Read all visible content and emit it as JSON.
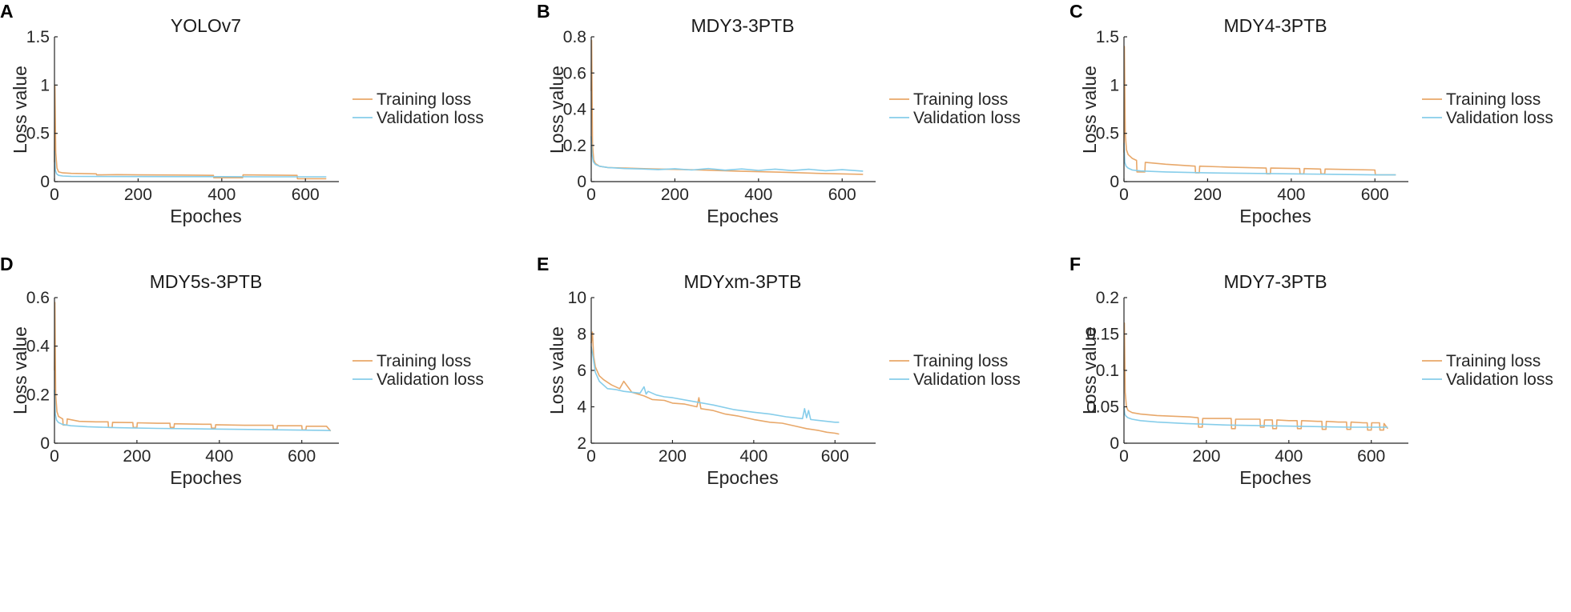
{
  "colors": {
    "training": "#E8A86A",
    "validation": "#86CDEA"
  },
  "legend": {
    "training_label": "Training loss",
    "validation_label": "Validation loss"
  },
  "chart_data": [
    {
      "panel_label": "A",
      "type": "line",
      "title": "YOLOv7",
      "xlabel": "Epoches",
      "ylabel": "Loss value",
      "xlim": [
        0,
        680
      ],
      "ylim": [
        0,
        1.5
      ],
      "xticks": [
        0,
        200,
        400,
        600
      ],
      "yticks": [
        0,
        0.5,
        1,
        1.5
      ],
      "ytick_labels": [
        "0",
        "0.5",
        "1",
        "1.5"
      ],
      "series": [
        {
          "name": "Training loss",
          "x": [
            0,
            1,
            3,
            6,
            10,
            20,
            40,
            100,
            101,
            150,
            200,
            300,
            380,
            381,
            450,
            451,
            500,
            580,
            581,
            620,
            650
          ],
          "y": [
            0.2,
            1.0,
            0.3,
            0.14,
            0.1,
            0.09,
            0.085,
            0.08,
            0.07,
            0.072,
            0.07,
            0.068,
            0.065,
            0.04,
            0.04,
            0.07,
            0.068,
            0.065,
            0.03,
            0.03,
            0.03
          ]
        },
        {
          "name": "Validation loss",
          "x": [
            0,
            2,
            5,
            10,
            20,
            40,
            100,
            200,
            300,
            400,
            500,
            600,
            650
          ],
          "y": [
            0.32,
            0.12,
            0.08,
            0.065,
            0.058,
            0.055,
            0.053,
            0.052,
            0.051,
            0.051,
            0.05,
            0.05,
            0.05
          ]
        }
      ]
    },
    {
      "panel_label": "B",
      "type": "line",
      "title": "MDY3-3PTB",
      "xlabel": "Epoches",
      "ylabel": "Loss value",
      "xlim": [
        0,
        680
      ],
      "ylim": [
        0,
        0.8
      ],
      "xticks": [
        0,
        200,
        400,
        600
      ],
      "yticks": [
        0,
        0.2,
        0.4,
        0.6,
        0.8
      ],
      "ytick_labels": [
        "0",
        "0.2",
        "0.4",
        "0.6",
        "0.8"
      ],
      "series": [
        {
          "name": "Training loss",
          "x": [
            0,
            1,
            3,
            6,
            10,
            20,
            40,
            80,
            150,
            250,
            350,
            450,
            550,
            650
          ],
          "y": [
            0.5,
            0.78,
            0.2,
            0.12,
            0.1,
            0.085,
            0.078,
            0.075,
            0.07,
            0.065,
            0.058,
            0.052,
            0.045,
            0.04
          ]
        },
        {
          "name": "Validation loss",
          "x": [
            0,
            2,
            5,
            10,
            20,
            40,
            80,
            120,
            160,
            200,
            240,
            280,
            320,
            360,
            400,
            440,
            480,
            520,
            560,
            600,
            650
          ],
          "y": [
            0.25,
            0.15,
            0.11,
            0.095,
            0.085,
            0.078,
            0.072,
            0.07,
            0.066,
            0.071,
            0.064,
            0.072,
            0.063,
            0.07,
            0.062,
            0.069,
            0.061,
            0.068,
            0.06,
            0.066,
            0.058
          ]
        }
      ]
    },
    {
      "panel_label": "C",
      "type": "line",
      "title": "MDY4-3PTB",
      "xlabel": "Epoches",
      "ylabel": "Loss value",
      "xlim": [
        0,
        680
      ],
      "ylim": [
        0,
        1.5
      ],
      "xticks": [
        0,
        200,
        400,
        600
      ],
      "yticks": [
        0,
        0.5,
        1,
        1.5
      ],
      "ytick_labels": [
        "0",
        "0.5",
        "1",
        "1.5"
      ],
      "series": [
        {
          "name": "Training loss",
          "x": [
            0,
            1,
            3,
            6,
            10,
            20,
            30,
            31,
            50,
            51,
            100,
            170,
            171,
            180,
            181,
            250,
            340,
            341,
            350,
            351,
            420,
            421,
            430,
            431,
            470,
            471,
            480,
            481,
            600,
            601,
            650
          ],
          "y": [
            0.3,
            1.4,
            0.5,
            0.33,
            0.28,
            0.24,
            0.22,
            0.1,
            0.1,
            0.2,
            0.18,
            0.16,
            0.09,
            0.09,
            0.16,
            0.15,
            0.14,
            0.08,
            0.08,
            0.14,
            0.135,
            0.08,
            0.08,
            0.135,
            0.13,
            0.08,
            0.08,
            0.13,
            0.12,
            0.07,
            0.07
          ]
        },
        {
          "name": "Validation loss",
          "x": [
            0,
            2,
            5,
            10,
            20,
            40,
            100,
            200,
            300,
            400,
            500,
            600,
            650
          ],
          "y": [
            0.4,
            0.2,
            0.16,
            0.14,
            0.12,
            0.11,
            0.1,
            0.09,
            0.085,
            0.08,
            0.075,
            0.07,
            0.07
          ]
        }
      ]
    },
    {
      "panel_label": "D",
      "type": "line",
      "title": "MDY5s-3PTB",
      "xlabel": "Epoches",
      "ylabel": "Loss value",
      "xlim": [
        0,
        690
      ],
      "ylim": [
        0,
        0.6
      ],
      "xticks": [
        0,
        200,
        400,
        600
      ],
      "yticks": [
        0,
        0.2,
        0.4,
        0.6
      ],
      "ytick_labels": [
        "0",
        "0.2",
        "0.4",
        "0.6"
      ],
      "series": [
        {
          "name": "Training loss",
          "x": [
            0,
            1,
            3,
            6,
            10,
            20,
            21,
            30,
            31,
            60,
            100,
            130,
            131,
            140,
            141,
            180,
            190,
            191,
            200,
            201,
            250,
            280,
            281,
            290,
            291,
            360,
            380,
            381,
            390,
            391,
            460,
            530,
            531,
            540,
            541,
            580,
            600,
            601,
            610,
            611,
            660,
            670
          ],
          "y": [
            0.3,
            0.58,
            0.2,
            0.13,
            0.11,
            0.1,
            0.075,
            0.075,
            0.1,
            0.09,
            0.088,
            0.088,
            0.065,
            0.065,
            0.086,
            0.085,
            0.085,
            0.065,
            0.065,
            0.084,
            0.082,
            0.082,
            0.065,
            0.065,
            0.08,
            0.078,
            0.078,
            0.062,
            0.062,
            0.076,
            0.074,
            0.074,
            0.058,
            0.058,
            0.072,
            0.072,
            0.072,
            0.055,
            0.055,
            0.07,
            0.07,
            0.05
          ]
        },
        {
          "name": "Validation loss",
          "x": [
            0,
            2,
            5,
            10,
            20,
            40,
            80,
            150,
            250,
            350,
            450,
            550,
            650,
            670
          ],
          "y": [
            0.22,
            0.12,
            0.095,
            0.085,
            0.077,
            0.072,
            0.068,
            0.064,
            0.061,
            0.059,
            0.057,
            0.055,
            0.053,
            0.052
          ]
        }
      ]
    },
    {
      "panel_label": "E",
      "type": "line",
      "title": "MDYxm-3PTB",
      "xlabel": "Epoches",
      "ylabel": "Loss value",
      "xlim": [
        0,
        700
      ],
      "ylim": [
        2,
        10
      ],
      "xticks": [
        0,
        200,
        400,
        600
      ],
      "yticks": [
        2,
        4,
        6,
        8,
        10
      ],
      "ytick_labels": [
        "2",
        "4",
        "6",
        "8",
        "10"
      ],
      "series": [
        {
          "name": "Training loss",
          "x": [
            0,
            3,
            6,
            10,
            20,
            30,
            50,
            70,
            80,
            100,
            130,
            150,
            180,
            200,
            230,
            260,
            265,
            270,
            300,
            330,
            360,
            400,
            440,
            470,
            500,
            530,
            560,
            580,
            600,
            610
          ],
          "y": [
            7.5,
            8.1,
            6.8,
            6.2,
            5.7,
            5.5,
            5.2,
            5.0,
            5.4,
            4.8,
            4.6,
            4.4,
            4.35,
            4.2,
            4.15,
            4.0,
            4.5,
            3.9,
            3.8,
            3.6,
            3.5,
            3.3,
            3.15,
            3.1,
            2.95,
            2.8,
            2.7,
            2.6,
            2.55,
            2.5
          ]
        },
        {
          "name": "Validation loss",
          "x": [
            0,
            5,
            10,
            20,
            40,
            60,
            80,
            100,
            120,
            130,
            135,
            140,
            160,
            180,
            200,
            250,
            300,
            350,
            400,
            440,
            480,
            500,
            520,
            525,
            530,
            535,
            540,
            560,
            600,
            610
          ],
          "y": [
            7.3,
            6.7,
            5.9,
            5.4,
            5.0,
            4.95,
            4.85,
            4.8,
            4.75,
            5.1,
            4.7,
            4.85,
            4.65,
            4.55,
            4.5,
            4.3,
            4.1,
            3.85,
            3.7,
            3.6,
            3.45,
            3.4,
            3.35,
            3.9,
            3.4,
            3.8,
            3.3,
            3.25,
            3.15,
            3.15
          ]
        }
      ]
    },
    {
      "panel_label": "F",
      "type": "line",
      "title": "MDY7-3PTB",
      "xlabel": "Epoches",
      "ylabel": "Loss value",
      "xlim": [
        0,
        690
      ],
      "ylim": [
        0,
        0.2
      ],
      "xticks": [
        0,
        200,
        400,
        600
      ],
      "yticks": [
        0,
        0.05,
        0.1,
        0.15,
        0.2
      ],
      "ytick_labels": [
        "0",
        "0.05",
        "0.1",
        "0.15",
        "0.2"
      ],
      "series": [
        {
          "name": "Training loss",
          "x": [
            0,
            1,
            3,
            6,
            10,
            20,
            40,
            80,
            120,
            160,
            180,
            181,
            190,
            191,
            240,
            260,
            261,
            270,
            271,
            320,
            330,
            331,
            340,
            341,
            360,
            361,
            370,
            371,
            400,
            420,
            421,
            430,
            431,
            470,
            480,
            481,
            490,
            491,
            520,
            540,
            541,
            550,
            551,
            580,
            590,
            591,
            600,
            601,
            620,
            621,
            630,
            631,
            640
          ],
          "y": [
            0.1,
            0.165,
            0.07,
            0.05,
            0.045,
            0.042,
            0.04,
            0.038,
            0.037,
            0.036,
            0.035,
            0.022,
            0.022,
            0.034,
            0.034,
            0.034,
            0.02,
            0.02,
            0.033,
            0.033,
            0.033,
            0.022,
            0.022,
            0.032,
            0.032,
            0.02,
            0.02,
            0.032,
            0.031,
            0.031,
            0.02,
            0.02,
            0.031,
            0.03,
            0.03,
            0.019,
            0.019,
            0.03,
            0.029,
            0.029,
            0.019,
            0.019,
            0.029,
            0.028,
            0.028,
            0.018,
            0.018,
            0.028,
            0.028,
            0.018,
            0.018,
            0.027,
            0.02
          ]
        },
        {
          "name": "Validation loss",
          "x": [
            0,
            2,
            5,
            10,
            20,
            40,
            80,
            150,
            250,
            350,
            450,
            550,
            640
          ],
          "y": [
            0.05,
            0.04,
            0.037,
            0.035,
            0.033,
            0.031,
            0.029,
            0.027,
            0.025,
            0.024,
            0.023,
            0.022,
            0.022
          ]
        }
      ]
    }
  ]
}
